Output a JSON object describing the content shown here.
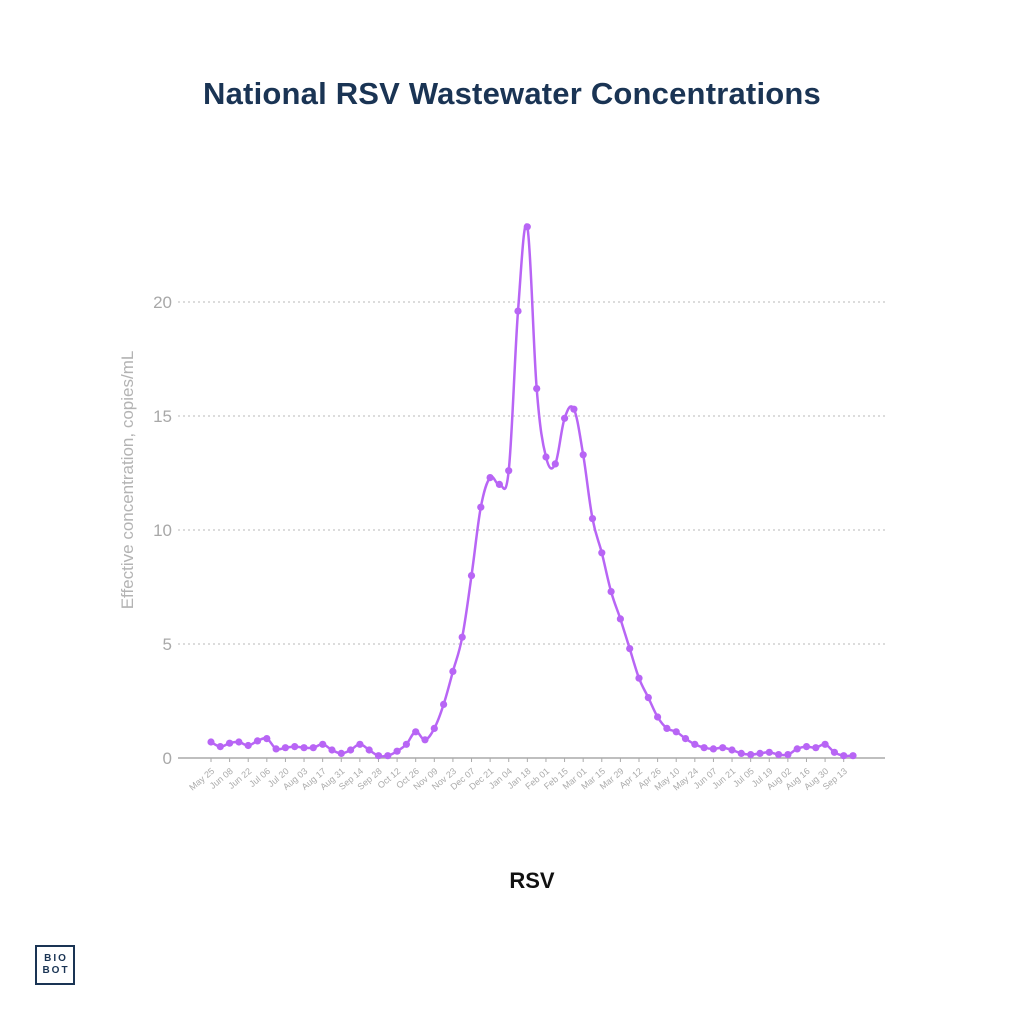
{
  "title": "National RSV Wastewater Concentrations",
  "logo": {
    "line1": "BIO",
    "line2": "BOT"
  },
  "colors": {
    "series": "#b865f5",
    "title": "#1a3454",
    "axis": "#aaaaaa",
    "grid": "#c8c8c8",
    "tick_label": "#999999"
  },
  "chart_data": {
    "type": "line",
    "ylabel": "Effective concentration, copies/mL",
    "xlabel": "",
    "legend": "RSV",
    "legend_placement": "bottom",
    "grid": "horizontal dotted",
    "ylim": [
      0,
      23.5
    ],
    "yticks": [
      0,
      5,
      10,
      15,
      20
    ],
    "x_tick_labels": [
      "May 25",
      "Jun 08",
      "Jun 22",
      "Jul 06",
      "Jul 20",
      "Aug 03",
      "Aug 17",
      "Aug 31",
      "Sep 14",
      "Sep 28",
      "Oct 12",
      "Oct 26",
      "Nov 09",
      "Nov 23",
      "Dec 07",
      "Dec 21",
      "Jan 04",
      "Jan 18",
      "Feb 01",
      "Feb 15",
      "Mar 01",
      "Mar 15",
      "Mar 29",
      "Apr 12",
      "Apr 26",
      "May 10",
      "May 24",
      "Jun 07",
      "Jun 21",
      "Jul 05",
      "Jul 19",
      "Aug 02",
      "Aug 16",
      "Aug 30",
      "Sep 13"
    ],
    "series": [
      {
        "name": "RSV",
        "values": [
          0.7,
          0.5,
          0.65,
          0.7,
          0.55,
          0.75,
          0.85,
          0.4,
          0.45,
          0.5,
          0.45,
          0.45,
          0.6,
          0.35,
          0.2,
          0.35,
          0.6,
          0.35,
          0.1,
          0.1,
          0.3,
          0.6,
          1.15,
          0.8,
          1.3,
          2.35,
          3.8,
          5.3,
          8.0,
          11.0,
          12.3,
          12.0,
          12.6,
          19.6,
          23.3,
          16.2,
          13.2,
          12.9,
          14.9,
          15.3,
          13.3,
          10.5,
          9.0,
          7.3,
          6.1,
          4.8,
          3.5,
          2.65,
          1.8,
          1.3,
          1.15,
          0.85,
          0.6,
          0.45,
          0.4,
          0.45,
          0.35,
          0.2,
          0.15,
          0.2,
          0.25,
          0.15,
          0.15,
          0.4,
          0.5,
          0.45,
          0.6,
          0.25,
          0.1,
          0.1
        ]
      }
    ]
  }
}
